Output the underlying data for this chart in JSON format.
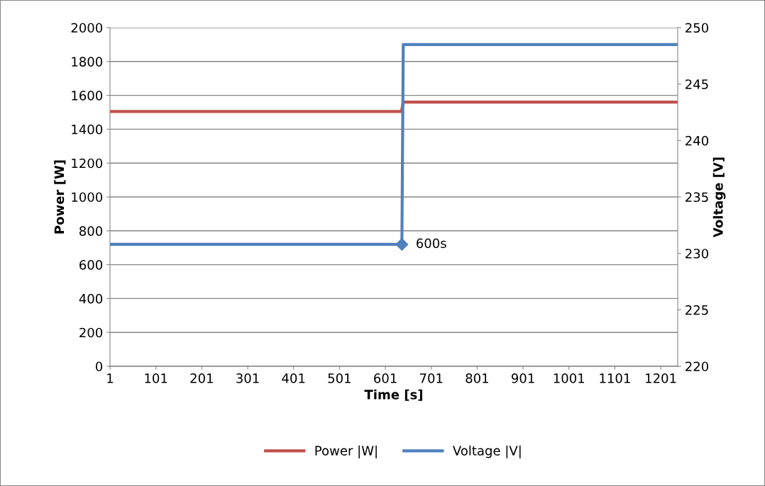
{
  "chart_data": {
    "type": "line",
    "xlabel": "Time [s]",
    "ylabel": "Power [W]",
    "y2label": "Voltage [V]",
    "xlim": [
      1,
      1238
    ],
    "xticks": [
      1,
      101,
      201,
      301,
      401,
      501,
      601,
      701,
      801,
      901,
      1001,
      1101,
      1201
    ],
    "ylim": [
      0,
      2000
    ],
    "yticks": [
      0,
      200,
      400,
      600,
      800,
      1000,
      1200,
      1400,
      1600,
      1800,
      2000
    ],
    "y2lim": [
      220,
      250
    ],
    "y2ticks": [
      220,
      225,
      230,
      235,
      240,
      245,
      250
    ],
    "grid": "y",
    "legend": "bottom",
    "series": [
      {
        "name": "Power |W|",
        "color": "#c0504d",
        "x": [
          1,
          636,
          640,
          1238
        ],
        "values": [
          1505,
          1505,
          1560,
          1560
        ]
      },
      {
        "name": "Voltage |V|",
        "color": "#4f81bd",
        "axis": "y2",
        "x": [
          1,
          637,
          640,
          1238
        ],
        "values": [
          230.8,
          230.8,
          248.5,
          248.5
        ]
      },
      {
        "type": "scatter",
        "color": "#4f81bd",
        "axis": "y2",
        "marker": "diamond",
        "x": [
          637
        ],
        "values": [
          230.8
        ]
      }
    ],
    "annotations": [
      "600s"
    ]
  }
}
